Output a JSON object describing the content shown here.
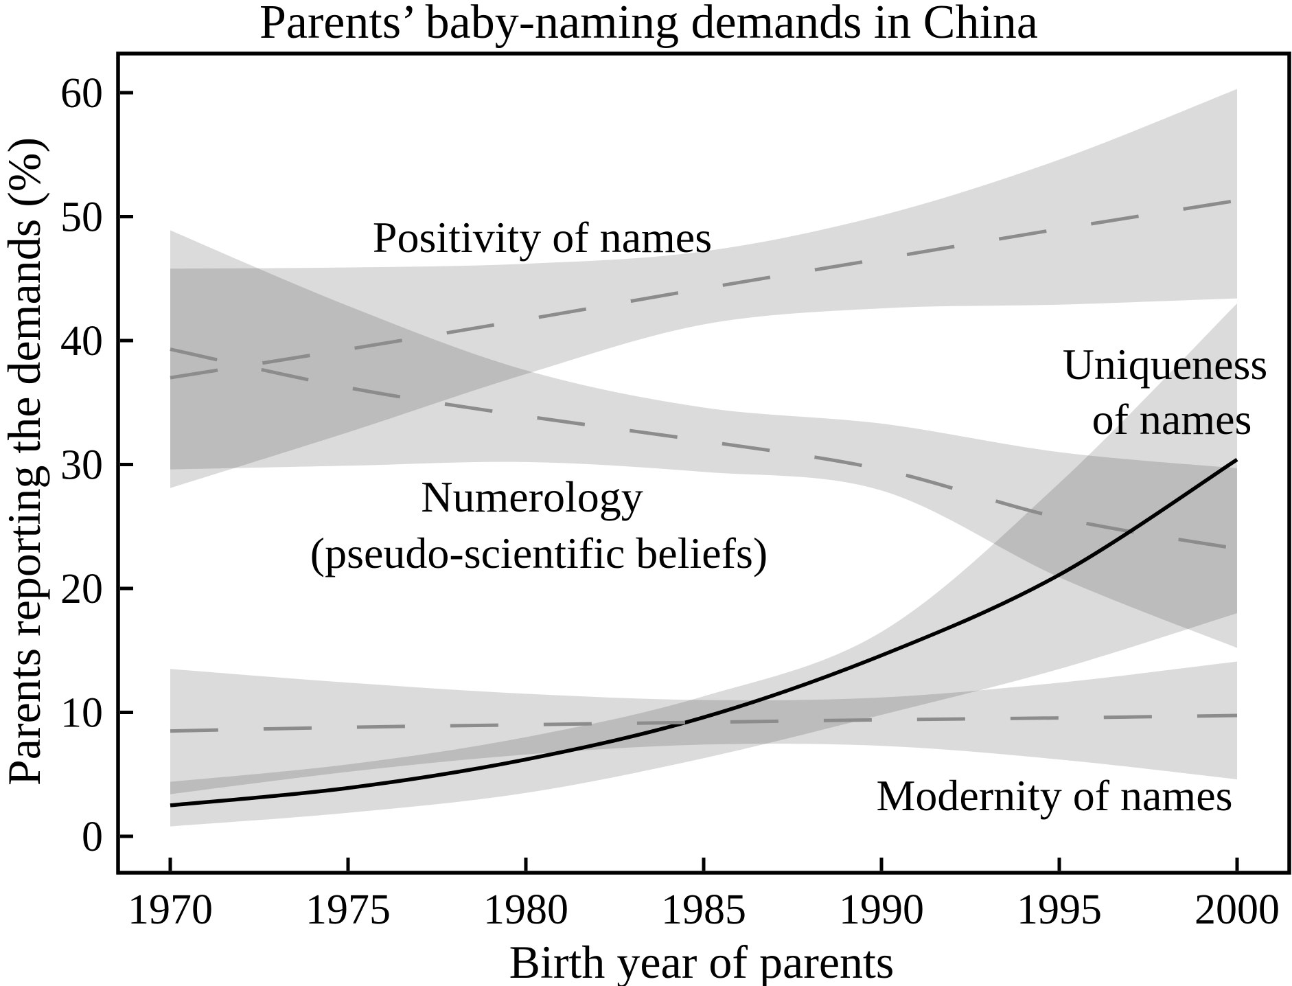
{
  "title": "Parents’ baby-naming demands in China",
  "chart_data": {
    "type": "line",
    "title": "Parents’ baby-naming demands in China",
    "xlabel": "Birth year of parents",
    "ylabel": "Parents reporting the demands (%)",
    "x": [
      1970,
      1975,
      1980,
      1985,
      1990,
      1995,
      2000
    ],
    "x_ticks": [
      1970,
      1975,
      1980,
      1985,
      1990,
      1995,
      2000
    ],
    "y_ticks": [
      0,
      10,
      20,
      30,
      40,
      50,
      60
    ],
    "xlim": [
      1968.5,
      2001.5
    ],
    "ylim": [
      -3,
      63
    ],
    "grid": false,
    "legend_position": "annotations-inside-plot",
    "band_fill": "rgba(0,0,0,0.14)",
    "series": [
      {
        "name": "Positivity of names",
        "style": "dashed",
        "color": "#8c8c8c",
        "values": [
          37.0,
          39.3,
          41.7,
          44.2,
          46.6,
          49.0,
          51.3
        ],
        "band_high": [
          45.8,
          45.9,
          46.2,
          47.2,
          50.1,
          54.6,
          60.3
        ],
        "band_low": [
          28.1,
          32.6,
          37.3,
          41.3,
          42.6,
          42.9,
          43.4
        ]
      },
      {
        "name": "Numerology (pseudo-scientific beliefs)",
        "style": "dashed",
        "color": "#8c8c8c",
        "values": [
          39.3,
          36.2,
          33.9,
          31.9,
          29.6,
          25.7,
          23.2
        ],
        "band_high": [
          48.9,
          42.8,
          37.6,
          34.6,
          33.3,
          31.0,
          29.7
        ],
        "band_low": [
          29.6,
          29.9,
          30.2,
          29.4,
          27.9,
          20.9,
          15.2
        ]
      },
      {
        "name": "Uniqueness of names",
        "style": "solid",
        "color": "#000000",
        "values": [
          2.5,
          3.9,
          6.2,
          9.6,
          14.6,
          21.1,
          30.4
        ],
        "band_high": [
          4.4,
          5.8,
          8.0,
          11.3,
          16.5,
          28.5,
          43.0
        ],
        "band_low": [
          0.8,
          1.9,
          3.5,
          6.3,
          9.8,
          13.5,
          18.0
        ]
      },
      {
        "name": "Modernity of names",
        "style": "dashed",
        "color": "#8c8c8c",
        "values": [
          8.5,
          8.8,
          9.0,
          9.2,
          9.4,
          9.55,
          9.75
        ],
        "band_high": [
          13.5,
          12.4,
          11.5,
          11.0,
          11.2,
          12.4,
          14.1
        ],
        "band_low": [
          3.4,
          5.2,
          6.6,
          7.4,
          7.3,
          6.2,
          4.6
        ]
      }
    ]
  },
  "annotations": {
    "positivity": "Positivity of names",
    "numerology_line1": "Numerology",
    "numerology_line2": "(pseudo-scientific beliefs)",
    "uniqueness_line1": "Uniqueness",
    "uniqueness_line2": "of names",
    "modernity": "Modernity of names"
  },
  "axis": {
    "x_tick_labels": [
      "1970",
      "1975",
      "1980",
      "1985",
      "1990",
      "1995",
      "2000"
    ],
    "y_tick_labels": [
      "0",
      "10",
      "20",
      "30",
      "40",
      "50",
      "60"
    ],
    "line_color": "#000000"
  }
}
